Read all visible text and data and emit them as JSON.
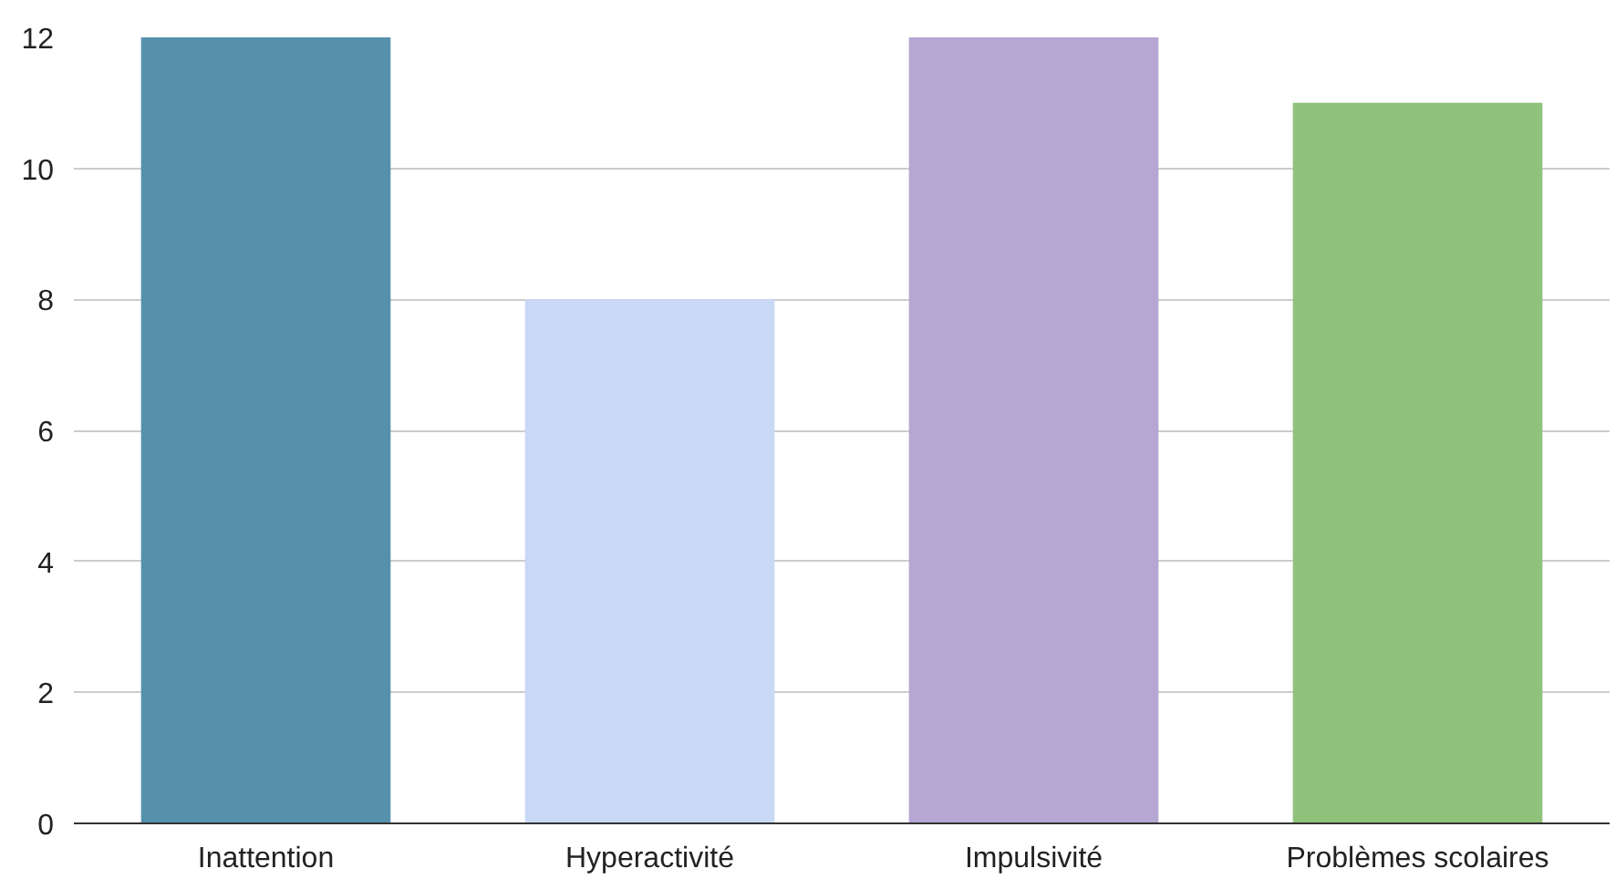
{
  "chart_data": {
    "type": "bar",
    "categories": [
      "Inattention",
      "Hyperactivité",
      "Impulsivité",
      "Problèmes scolaires"
    ],
    "values": [
      12,
      8,
      12,
      11
    ],
    "colors": [
      "#5691ab",
      "#c9d8f5",
      "#b5a6d3",
      "#90c27b"
    ],
    "ylim": [
      0,
      12
    ],
    "yticks": [
      0,
      2,
      4,
      6,
      8,
      10,
      12
    ],
    "grid": "y"
  }
}
